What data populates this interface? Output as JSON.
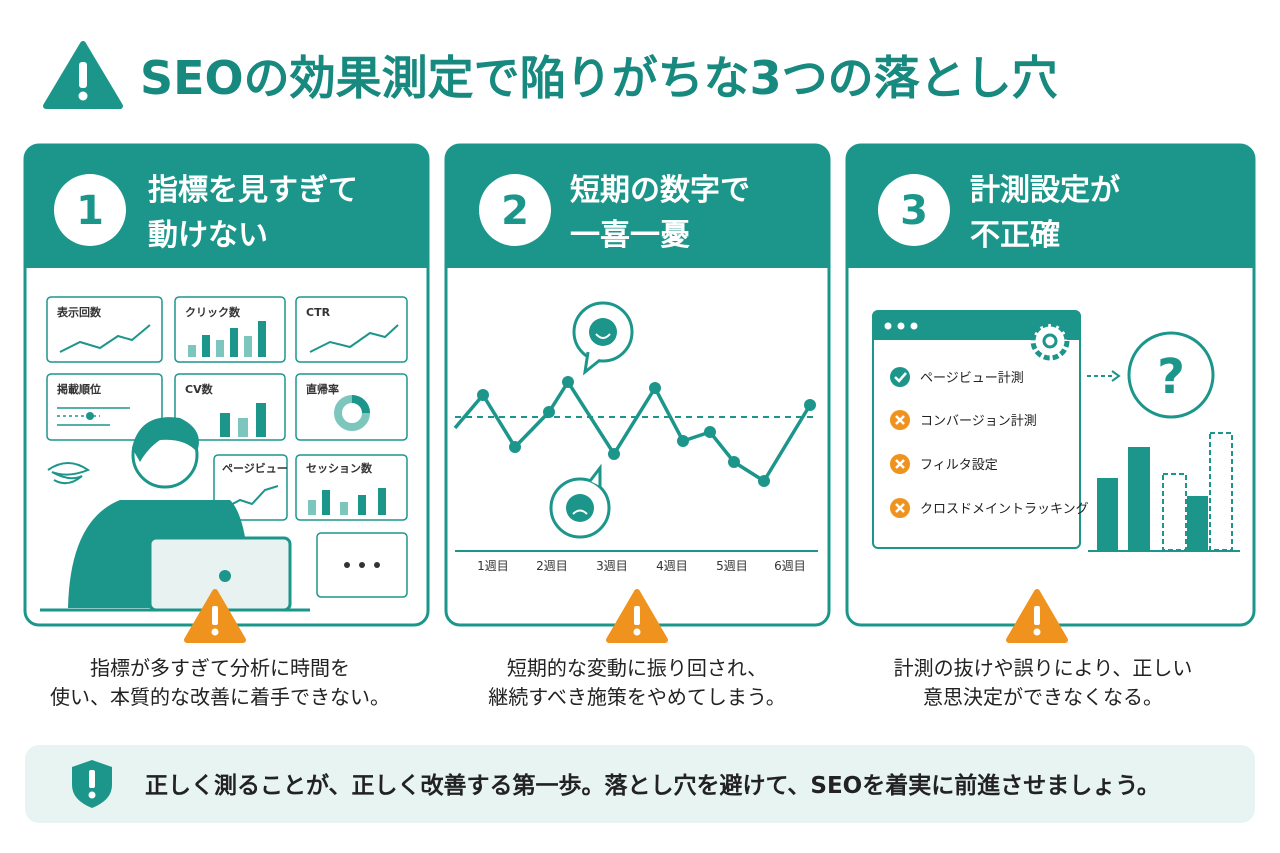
{
  "title": "SEOの効果測定で陥りがちな3つの落とし穴",
  "cards": [
    {
      "number": "1",
      "title_lines": [
        "指標を見すぎて",
        "動けない"
      ],
      "widgets": [
        "表示回数",
        "クリック数",
        "CTR",
        "掲載順位",
        "CV数",
        "直帰率",
        "ページビュー",
        "セッション数"
      ],
      "description_lines": [
        "指標が多すぎて分析に時間を",
        "使い、本質的な改善に着手できない。"
      ]
    },
    {
      "number": "2",
      "title_lines": [
        "短期の数字で",
        "一喜一憂"
      ],
      "x_labels": [
        "1週目",
        "2週目",
        "3週目",
        "4週目",
        "5週目",
        "6週目"
      ],
      "description_lines": [
        "短期的な変動に振り回され、",
        "継続すべき施策をやめてしまう。"
      ]
    },
    {
      "number": "3",
      "title_lines": [
        "計測設定が",
        "不正確"
      ],
      "checklist": [
        "ページビュー計測",
        "コンバージョン計測",
        "フィルタ設定",
        "クロスドメイントラッキング"
      ],
      "description_lines": [
        "計測の抜けや誤りにより、正しい",
        "意思決定ができなくなる。"
      ]
    }
  ],
  "footer": "正しく測ることが、正しく改善する第一歩。落とし穴を避けて、SEOを着実に前進させましょう。"
}
